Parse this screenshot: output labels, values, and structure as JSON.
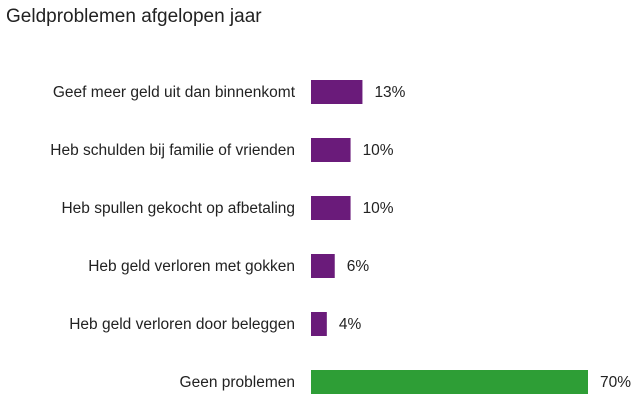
{
  "chart_data": {
    "type": "bar",
    "orientation": "horizontal",
    "title": "Geldproblemen afgelopen jaar",
    "categories": [
      "Geef meer geld uit dan binnenkomt",
      "Heb schulden bij familie of vrienden",
      "Heb spullen gekocht op afbetaling",
      "Heb geld verloren met gokken",
      "Heb geld verloren door beleggen",
      "Geen problemen"
    ],
    "values": [
      13,
      10,
      10,
      6,
      4,
      70
    ],
    "value_labels": [
      "13%",
      "10%",
      "10%",
      "6%",
      "4%",
      "70%"
    ],
    "colors": [
      "#6a1b7a",
      "#6a1b7a",
      "#6a1b7a",
      "#6a1b7a",
      "#6a1b7a",
      "#2e9e36"
    ],
    "xlim": [
      0,
      70
    ],
    "grid": false,
    "legend": "none"
  }
}
